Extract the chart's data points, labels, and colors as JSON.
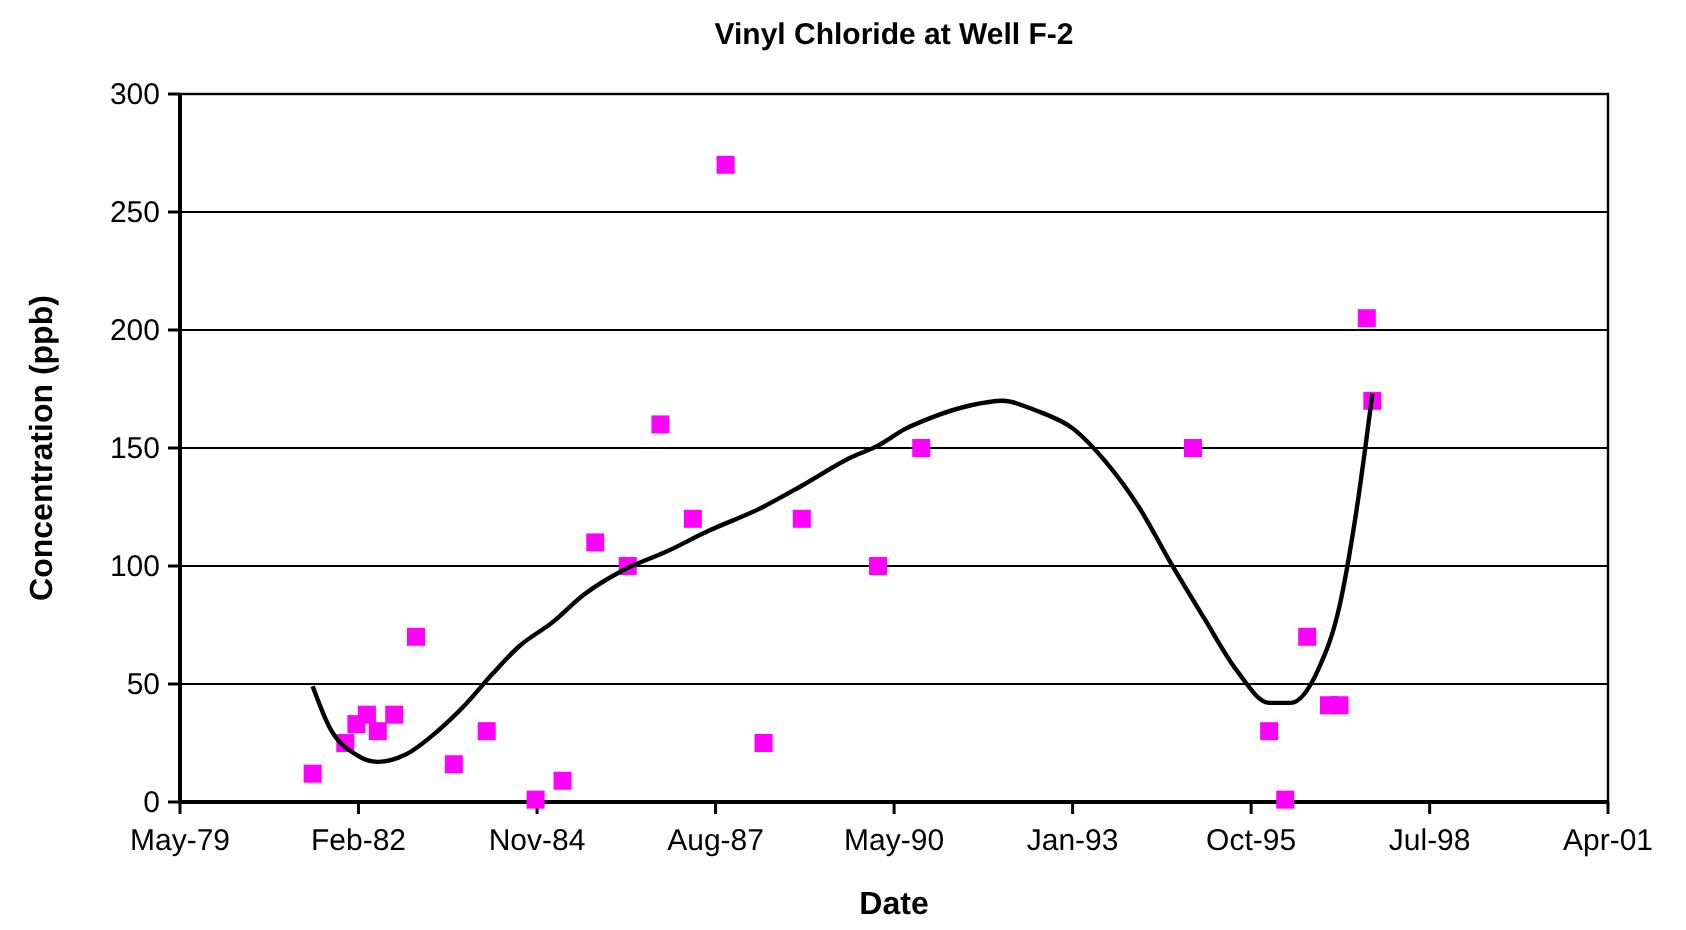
{
  "chart_data": {
    "type": "scatter",
    "title": "Vinyl Chloride at Well F-2",
    "xlabel": "Date",
    "ylabel": "Concentration (ppb)",
    "xlim": [
      "1979-05-20",
      "2001-04-13"
    ],
    "xticks": [
      {
        "value": "1979-05-20",
        "label": "May-79"
      },
      {
        "value": "1982-02-13",
        "label": "Feb-82"
      },
      {
        "value": "1984-11-09",
        "label": "Nov-84"
      },
      {
        "value": "1987-08-06",
        "label": "Aug-87"
      },
      {
        "value": "1990-05-02",
        "label": "May-90"
      },
      {
        "value": "1993-01-26",
        "label": "Jan-93"
      },
      {
        "value": "1995-10-23",
        "label": "Oct-95"
      },
      {
        "value": "1998-07-19",
        "label": "Jul-98"
      },
      {
        "value": "2001-04-13",
        "label": "Apr-01"
      }
    ],
    "ylim": [
      0,
      300
    ],
    "yticks": [
      0,
      50,
      100,
      150,
      200,
      250,
      300
    ],
    "grid": "y",
    "series": [
      {
        "color": "#ff00ff",
        "marker": "square",
        "x": [
          "1981-06",
          "1981-12",
          "1982-02",
          "1982-04",
          "1982-06",
          "1982-09",
          "1983-01",
          "1983-08",
          "1984-02",
          "1984-11",
          "1985-04",
          "1985-10",
          "1986-04",
          "1986-10",
          "1987-04",
          "1987-10",
          "1988-05",
          "1988-12",
          "1990-02",
          "1990-10",
          "1994-12",
          "1996-02",
          "1996-05",
          "1996-09",
          "1997-01",
          "1997-03",
          "1997-08",
          "1997-09"
        ],
        "values": [
          12,
          25,
          33,
          37,
          30,
          37,
          70,
          16,
          30,
          1,
          9,
          110,
          100,
          160,
          120,
          270,
          25,
          120,
          100,
          150,
          150,
          30,
          1,
          70,
          41,
          41,
          205,
          170
        ]
      },
      {
        "type": "line",
        "color": "#000000",
        "marker": "none",
        "line_style": "solid",
        "x": [
          "1981-06",
          "1981-09",
          "1982-02",
          "1982-06",
          "1982-11",
          "1983-05",
          "1983-10",
          "1984-03",
          "1984-08",
          "1985-02",
          "1985-08",
          "1986-03",
          "1986-11",
          "1987-07",
          "1988-04",
          "1988-12",
          "1989-09",
          "1990-02",
          "1990-07",
          "1990-12",
          "1991-07",
          "1992-01",
          "1992-07",
          "1993-02",
          "1993-08",
          "1994-02",
          "1994-08",
          "1995-02",
          "1995-08",
          "1996-02",
          "1996-06",
          "1996-11",
          "1997-03",
          "1997-06",
          "1997-09"
        ],
        "values": [
          49,
          32,
          20,
          17,
          20,
          30,
          41,
          54,
          66,
          76,
          88,
          98,
          106,
          115,
          124,
          134,
          146,
          151,
          158,
          163,
          168,
          170,
          166,
          158,
          144,
          125,
          101,
          78,
          56,
          42,
          42,
          56,
          83,
          122,
          173
        ]
      }
    ]
  }
}
